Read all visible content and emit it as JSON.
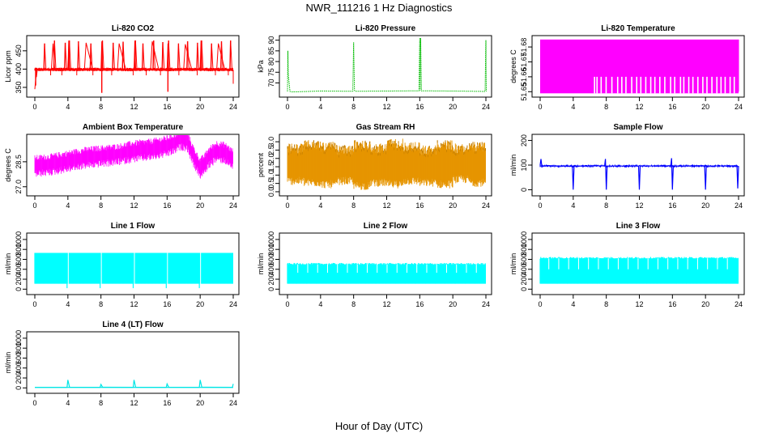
{
  "title": "NWR_111216  1 Hz Diagnostics",
  "xlabel": "Hour of Day (UTC)",
  "chart_data": [
    {
      "type": "line",
      "title": "Li-820 CO2",
      "ylabel": "Licor ppm",
      "color": "#ff0000",
      "ylim": [
        330,
        485
      ],
      "yticks": [
        "350",
        "400",
        "450"
      ],
      "ytick_values": [
        350,
        400,
        450
      ],
      "xlim": [
        0,
        24
      ],
      "xticks": [
        "0",
        "4",
        "8",
        "12",
        "16",
        "20",
        "24"
      ],
      "x": [
        0,
        0.2,
        0.2,
        0.3,
        0.3,
        1,
        2,
        2.2,
        2.4,
        3,
        4,
        4.1,
        4.2,
        5,
        6,
        6.2,
        7,
        8,
        8.1,
        8.2,
        9,
        10,
        10.2,
        11,
        12,
        12.1,
        12.2,
        13,
        14,
        14.2,
        15,
        16,
        16.1,
        16.2,
        17,
        18,
        18.2,
        19,
        20,
        20.1,
        20.2,
        21,
        22,
        22.2,
        23,
        24,
        24
      ],
      "y": [
        345,
        395,
        378,
        400,
        397,
        397,
        398,
        470,
        397,
        396,
        397,
        478,
        397,
        398,
        399,
        472,
        400,
        396,
        476,
        398,
        397,
        398,
        470,
        399,
        398,
        478,
        400,
        399,
        398,
        476,
        398,
        396,
        470,
        395,
        397,
        399,
        468,
        397,
        398,
        478,
        397,
        396,
        398,
        470,
        397,
        397,
        360
      ],
      "spikes_x": [
        1.1,
        2.3,
        3.6,
        4.1,
        5.2,
        6.7,
        8.1,
        9.4,
        10.6,
        12.1,
        13.0,
        14.3,
        15.4,
        16.1,
        17.3,
        18.4,
        19.6,
        20.1,
        21.3,
        22.5,
        23.6
      ],
      "spikes_y": [
        470,
        478,
        472,
        478,
        476,
        470,
        478,
        472,
        475,
        478,
        470,
        478,
        474,
        478,
        470,
        476,
        472,
        478,
        470,
        476,
        478
      ],
      "dips_x": [
        8.1,
        16.1,
        0.1
      ],
      "dips_y": [
        335,
        338,
        355
      ]
    },
    {
      "type": "line",
      "title": "Li-820 Pressure",
      "ylabel": "kPa",
      "color": "#00bb00",
      "ylim": [
        64.5,
        91
      ],
      "yticks": [
        "70",
        "75",
        "80",
        "85",
        "90"
      ],
      "ytick_values": [
        70,
        75,
        80,
        85,
        90
      ],
      "xlim": [
        0,
        24
      ],
      "xticks": [
        "0",
        "4",
        "8",
        "12",
        "16",
        "20",
        "24"
      ],
      "x": [
        0,
        0.05,
        0.1,
        0.2,
        0.3,
        0.5,
        4,
        7.9,
        8.0,
        8.1,
        8.2,
        12,
        15.9,
        16.0,
        16.05,
        16.1,
        16.2,
        20,
        23.9,
        24.0,
        24.05
      ],
      "y": [
        66,
        85,
        74,
        70,
        66,
        65.8,
        66.2,
        66.1,
        89,
        66.5,
        66.1,
        66.2,
        66.3,
        91,
        66.5,
        91,
        66.3,
        66.2,
        66.0,
        90,
        66
      ],
      "base": 66
    },
    {
      "type": "area",
      "title": "Li-820 Temperature",
      "ylabel": "degrees C",
      "color": "#ff00ff",
      "ylim": [
        51.648,
        51.686
      ],
      "yticks": [
        "51.65",
        "51.66",
        "51.67",
        "51.68"
      ],
      "ytick_values": [
        51.65,
        51.66,
        51.67,
        51.68
      ],
      "xlim": [
        0,
        24
      ],
      "xticks": [
        "0",
        "4",
        "8",
        "12",
        "16",
        "20",
        "24"
      ],
      "top": 51.685,
      "bottom": 51.65,
      "gap_x": [
        6.5,
        6.8,
        7.3,
        7.9,
        8.6,
        9.3,
        9.8,
        10.3,
        11.0,
        11.6,
        12.1,
        12.7,
        13.3,
        13.8,
        14.4,
        15.0,
        15.7,
        16.2,
        16.9,
        17.3,
        17.9,
        18.4,
        19.0,
        19.6,
        20.1,
        20.7,
        21.3,
        21.8,
        22.3,
        22.9,
        23.4
      ],
      "gap_level": 51.66
    },
    {
      "type": "line",
      "title": "Ambient Box Temperature",
      "ylabel": "degrees C",
      "color": "#ff00ff",
      "ylim": [
        26.6,
        30.0
      ],
      "yticks": [
        "27.0",
        "28.5"
      ],
      "ytick_values": [
        27.0,
        28.5
      ],
      "xlim": [
        0,
        24
      ],
      "xticks": [
        "0",
        "4",
        "8",
        "12",
        "16",
        "20",
        "24"
      ],
      "x": [
        0,
        2,
        4,
        6,
        8,
        10,
        12,
        14,
        15,
        16,
        17,
        17.5,
        18,
        18.5,
        19,
        19.5,
        20,
        20.5,
        21,
        22,
        23,
        24
      ],
      "y": [
        28.3,
        28.4,
        28.6,
        28.8,
        28.9,
        29.0,
        29.2,
        29.3,
        29.4,
        29.5,
        29.7,
        29.9,
        29.9,
        29.8,
        29.1,
        28.6,
        28.2,
        28.4,
        28.8,
        29.2,
        29.1,
        28.7
      ],
      "band": 0.75
    },
    {
      "type": "area",
      "title": "Gas Stream RH",
      "ylabel": "percent",
      "color": "#e69500",
      "edge_color": "#b07000",
      "ylim": [
        -0.1,
        3.3
      ],
      "yticks": [
        "0.0",
        "0.5",
        "1.0",
        "1.5",
        "2.0",
        "2.5",
        "3.0"
      ],
      "ytick_values": [
        0.0,
        0.5,
        1.0,
        1.5,
        2.0,
        2.5,
        3.0
      ],
      "xlim": [
        0,
        24
      ],
      "xticks": [
        "0",
        "4",
        "8",
        "12",
        "16",
        "20",
        "24"
      ],
      "top": [
        2.9,
        3.1,
        3.0,
        2.8,
        3.1,
        2.9,
        3.2,
        3.0,
        2.8,
        3.1,
        2.9,
        3.0,
        2.7
      ],
      "bottom": [
        0.4,
        0.3,
        0.2,
        0.4,
        0.1,
        0.3,
        0.2,
        0.4,
        0.3,
        0.2,
        0.5,
        0.3,
        0.4
      ]
    },
    {
      "type": "line",
      "title": "Sample Flow",
      "ylabel": "ml/min",
      "color": "#0000ff",
      "ylim": [
        -15,
        215
      ],
      "yticks": [
        "0",
        "100",
        "200"
      ],
      "ytick_values": [
        0,
        100,
        200
      ],
      "xlim": [
        0,
        24
      ],
      "xticks": [
        "0",
        "4",
        "8",
        "12",
        "16",
        "20",
        "24"
      ],
      "x": [
        0,
        0.1,
        0.2,
        3.9,
        4.0,
        4.1,
        7.8,
        7.9,
        8.0,
        8.1,
        11.9,
        12.0,
        12.1,
        15.8,
        15.9,
        16.0,
        16.1,
        19.9,
        20.0,
        20.1,
        23.8,
        23.9,
        24.0
      ],
      "y": [
        100,
        125,
        97,
        96,
        0,
        96,
        97,
        125,
        0,
        96,
        96,
        0,
        96,
        97,
        128,
        0,
        96,
        97,
        0,
        96,
        97,
        5,
        96
      ],
      "band": 6
    },
    {
      "type": "area",
      "title": "Line 1 Flow",
      "ylabel": "ml/min",
      "color": "#00ffff",
      "ylim": [
        -60,
        1080
      ],
      "yticks": [
        "0",
        "200",
        "400",
        "600",
        "800",
        "1000"
      ],
      "ytick_values": [
        0,
        200,
        400,
        600,
        800,
        1000
      ],
      "xlim": [
        0,
        24
      ],
      "xticks": [
        "0",
        "4",
        "8",
        "12",
        "16",
        "20",
        "24"
      ],
      "top": 730,
      "bottom": 110,
      "gap_x": [
        3.9,
        7.9,
        11.9,
        15.9,
        19.9
      ],
      "gap_bottom": 20
    },
    {
      "type": "area",
      "title": "Line 2 Flow",
      "ylabel": "ml/min",
      "color": "#00ffff",
      "ylim": [
        -60,
        1080
      ],
      "yticks": [
        "0",
        "200",
        "400",
        "600",
        "800",
        "1000"
      ],
      "ytick_values": [
        0,
        200,
        400,
        600,
        800,
        1000
      ],
      "xlim": [
        0,
        24
      ],
      "xticks": [
        "0",
        "4",
        "8",
        "12",
        "16",
        "20",
        "24"
      ],
      "top": 500,
      "bottom": 110,
      "gap_x": [
        1.1,
        2.3,
        3.5,
        4.7,
        5.9,
        7.1,
        8.3,
        9.5,
        10.7,
        11.9,
        13.1,
        14.3,
        15.5,
        16.7,
        17.9,
        19.1,
        20.3,
        21.5,
        22.7
      ],
      "gap_bottom": 330
    },
    {
      "type": "area",
      "title": "Line 3 Flow",
      "ylabel": "ml/min",
      "color": "#00ffff",
      "ylim": [
        -60,
        1080
      ],
      "yticks": [
        "0",
        "200",
        "400",
        "600",
        "800",
        "1000"
      ],
      "ytick_values": [
        0,
        200,
        400,
        600,
        800,
        1000
      ],
      "xlim": [
        0,
        24
      ],
      "xticks": [
        "0",
        "4",
        "8",
        "12",
        "16",
        "20",
        "24"
      ],
      "top": 620,
      "bottom": 110,
      "gap_x": [
        0.9,
        2.1,
        3.3,
        4.5,
        5.7,
        6.9,
        8.1,
        9.3,
        10.5,
        11.7,
        12.9,
        14.1,
        15.3,
        16.5,
        17.7,
        18.9,
        20.1,
        21.3,
        22.5
      ],
      "gap_bottom": 400
    },
    {
      "type": "line",
      "title": "Line 4 (LT) Flow",
      "ylabel": "ml/min",
      "color": "#00e5e5",
      "ylim": [
        -60,
        1080
      ],
      "yticks": [
        "0",
        "200",
        "400",
        "600",
        "800",
        "1000"
      ],
      "ytick_values": [
        0,
        200,
        400,
        600,
        800,
        1000
      ],
      "xlim": [
        0,
        24
      ],
      "xticks": [
        "0",
        "4",
        "8",
        "12",
        "16",
        "20",
        "24"
      ],
      "x": [
        0,
        3.9,
        4.0,
        4.2,
        7.9,
        8.0,
        8.2,
        11.9,
        12.0,
        12.2,
        15.9,
        16.0,
        16.2,
        19.9,
        20.0,
        20.2,
        23.9,
        24.0
      ],
      "y": [
        10,
        12,
        160,
        14,
        12,
        70,
        14,
        12,
        160,
        14,
        12,
        80,
        14,
        12,
        160,
        14,
        12,
        80
      ],
      "band": 8
    }
  ]
}
